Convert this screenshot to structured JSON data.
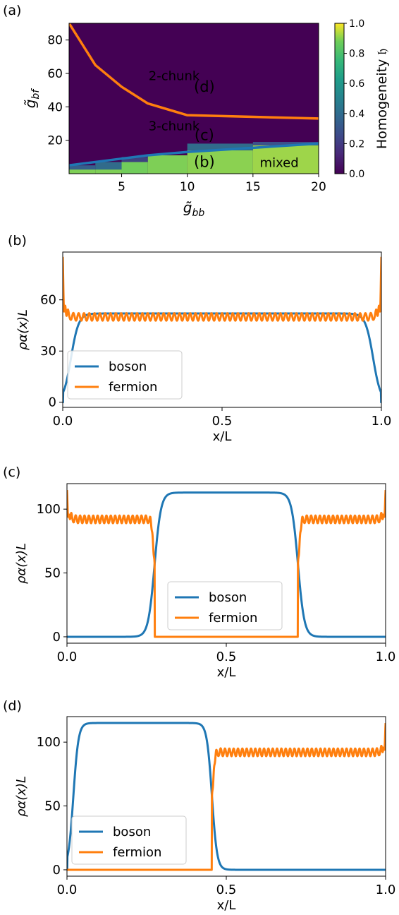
{
  "panel_labels": [
    "(a)",
    "(b)",
    "(c)",
    "(d)"
  ],
  "colors": {
    "boson": "#1f77b4",
    "fermion": "#ff7f0e",
    "phase_line": "#ff7f0e",
    "boundary_line": "#1f77b4",
    "region_label": "#ffffff",
    "marker_label": "#dd1c1c"
  },
  "chart_data": [
    {
      "type": "heatmap",
      "xlabel": "g̃bb",
      "ylabel": "g̃bf",
      "xlim": [
        1,
        20
      ],
      "ylim": [
        0,
        90
      ],
      "xticks": [
        5,
        10,
        15,
        20
      ],
      "yticks": [
        20,
        40,
        60,
        80
      ],
      "colorbar": {
        "label": "Homogeneity 𝔥",
        "range": [
          0.0,
          1.0
        ],
        "ticks": [
          "0.0",
          "0.2",
          "0.4",
          "0.6",
          "0.8",
          "1.0"
        ],
        "colormap": "viridis"
      },
      "cells": [
        {
          "x0": 1,
          "x1": 3,
          "y0": 0,
          "y1": 2.5,
          "value": 0.8
        },
        {
          "x0": 1,
          "x1": 3,
          "y0": 2.5,
          "y1": 5,
          "value": 0.3
        },
        {
          "x0": 3,
          "x1": 5,
          "y0": 0,
          "y1": 2.5,
          "value": 0.8
        },
        {
          "x0": 3,
          "x1": 5,
          "y0": 2.5,
          "y1": 7,
          "value": 0.35
        },
        {
          "x0": 5,
          "x1": 7,
          "y0": 0,
          "y1": 7,
          "value": 0.78
        },
        {
          "x0": 5,
          "x1": 7,
          "y0": 7,
          "y1": 10,
          "value": 0.2
        },
        {
          "x0": 7,
          "x1": 10,
          "y0": 0,
          "y1": 11,
          "value": 0.8
        },
        {
          "x0": 10,
          "x1": 15,
          "y0": 0,
          "y1": 14,
          "value": 0.82
        },
        {
          "x0": 10,
          "x1": 15,
          "y0": 14,
          "y1": 18,
          "value": 0.35
        },
        {
          "x0": 15,
          "x1": 20,
          "y0": 0,
          "y1": 17,
          "value": 0.85
        },
        {
          "x0": 15,
          "x1": 20,
          "y0": 17,
          "y1": 19,
          "value": 0.25
        }
      ],
      "lines": [
        {
          "name": "2-chunk/3-chunk boundary",
          "color": "#ff7f0e",
          "x": [
            1,
            3,
            5,
            7,
            10,
            15,
            20
          ],
          "y": [
            90,
            65,
            52,
            42,
            35,
            34,
            33
          ]
        },
        {
          "name": "3-chunk/mixed boundary",
          "color": "#1f77b4",
          "x": [
            1,
            3,
            5,
            7,
            10,
            15,
            20
          ],
          "y": [
            5,
            7,
            9,
            11,
            13,
            15.5,
            18
          ]
        }
      ],
      "region_labels": [
        {
          "text": "2-chunk",
          "x": 9,
          "y": 56
        },
        {
          "text": "3-chunk",
          "x": 9,
          "y": 26
        },
        {
          "text": "mixed",
          "x": 17,
          "y": 4
        }
      ],
      "markers": [
        {
          "text": "(d)",
          "x": 11.3,
          "y": 49
        },
        {
          "text": "(c)",
          "x": 11.3,
          "y": 20
        },
        {
          "text": "(b)",
          "x": 11.3,
          "y": 4
        }
      ]
    },
    {
      "type": "line",
      "xlabel": "x/L",
      "ylabel": "ρα(x)L",
      "xlim": [
        0.0,
        1.0
      ],
      "ylim": [
        -3,
        88
      ],
      "xticks": [
        "0.0",
        "0.5",
        "1.0"
      ],
      "yticks": [
        "0",
        "30",
        "60"
      ],
      "legend": "lower-left",
      "series": [
        {
          "name": "boson",
          "color": "#1f77b4",
          "shape": "plateau",
          "plateau": 52,
          "edges": [
            0.0,
            1.0
          ],
          "width": 0.012,
          "ramp_shift": 0.026
        },
        {
          "name": "fermion",
          "color": "#ff7f0e",
          "shape": "oscillating",
          "plateau": 50,
          "oscillation_amplitude": 2.2,
          "edge_peak": 83,
          "edges": [
            0.0,
            1.0
          ],
          "oscillation_count": 60
        }
      ]
    },
    {
      "type": "line",
      "xlabel": "x/L",
      "ylabel": "ρα(x)L",
      "xlim": [
        0.0,
        1.0
      ],
      "ylim": [
        -5,
        120
      ],
      "xticks": [
        "0.0",
        "0.5",
        "1.0"
      ],
      "yticks": [
        "0",
        "50",
        "100"
      ],
      "legend": "lower-center",
      "series": [
        {
          "name": "boson",
          "color": "#1f77b4",
          "shape": "plateau",
          "plateau": 113,
          "edges": [
            0.275,
            0.725
          ],
          "width": 0.01,
          "ramp_shift": 0.02
        },
        {
          "name": "fermion",
          "color": "#ff7f0e",
          "shape": "oscillating",
          "plateau": 92,
          "oscillation_amplitude": 3.0,
          "edge_peak": 112,
          "segments": [
            [
              0.0,
              0.275
            ],
            [
              0.725,
              1.0
            ]
          ],
          "oscillation_count": 20
        }
      ]
    },
    {
      "type": "line",
      "xlabel": "x/L",
      "ylabel": "ρα(x)L",
      "xlim": [
        0.0,
        1.0
      ],
      "ylim": [
        -5,
        120
      ],
      "xticks": [
        "0.0",
        "0.5",
        "1.0"
      ],
      "yticks": [
        "0",
        "50",
        "100"
      ],
      "legend": "lower-left",
      "series": [
        {
          "name": "boson",
          "color": "#1f77b4",
          "shape": "plateau",
          "plateau": 115,
          "edges": [
            0.0,
            0.455
          ],
          "width": 0.008,
          "ramp_shift": 0.02
        },
        {
          "name": "fermion",
          "color": "#ff7f0e",
          "shape": "oscillating",
          "plateau": 92,
          "oscillation_amplitude": 3.0,
          "edge_peak": 112,
          "segments": [
            [
              0.455,
              1.0
            ]
          ],
          "oscillation_count": 40
        }
      ]
    }
  ]
}
